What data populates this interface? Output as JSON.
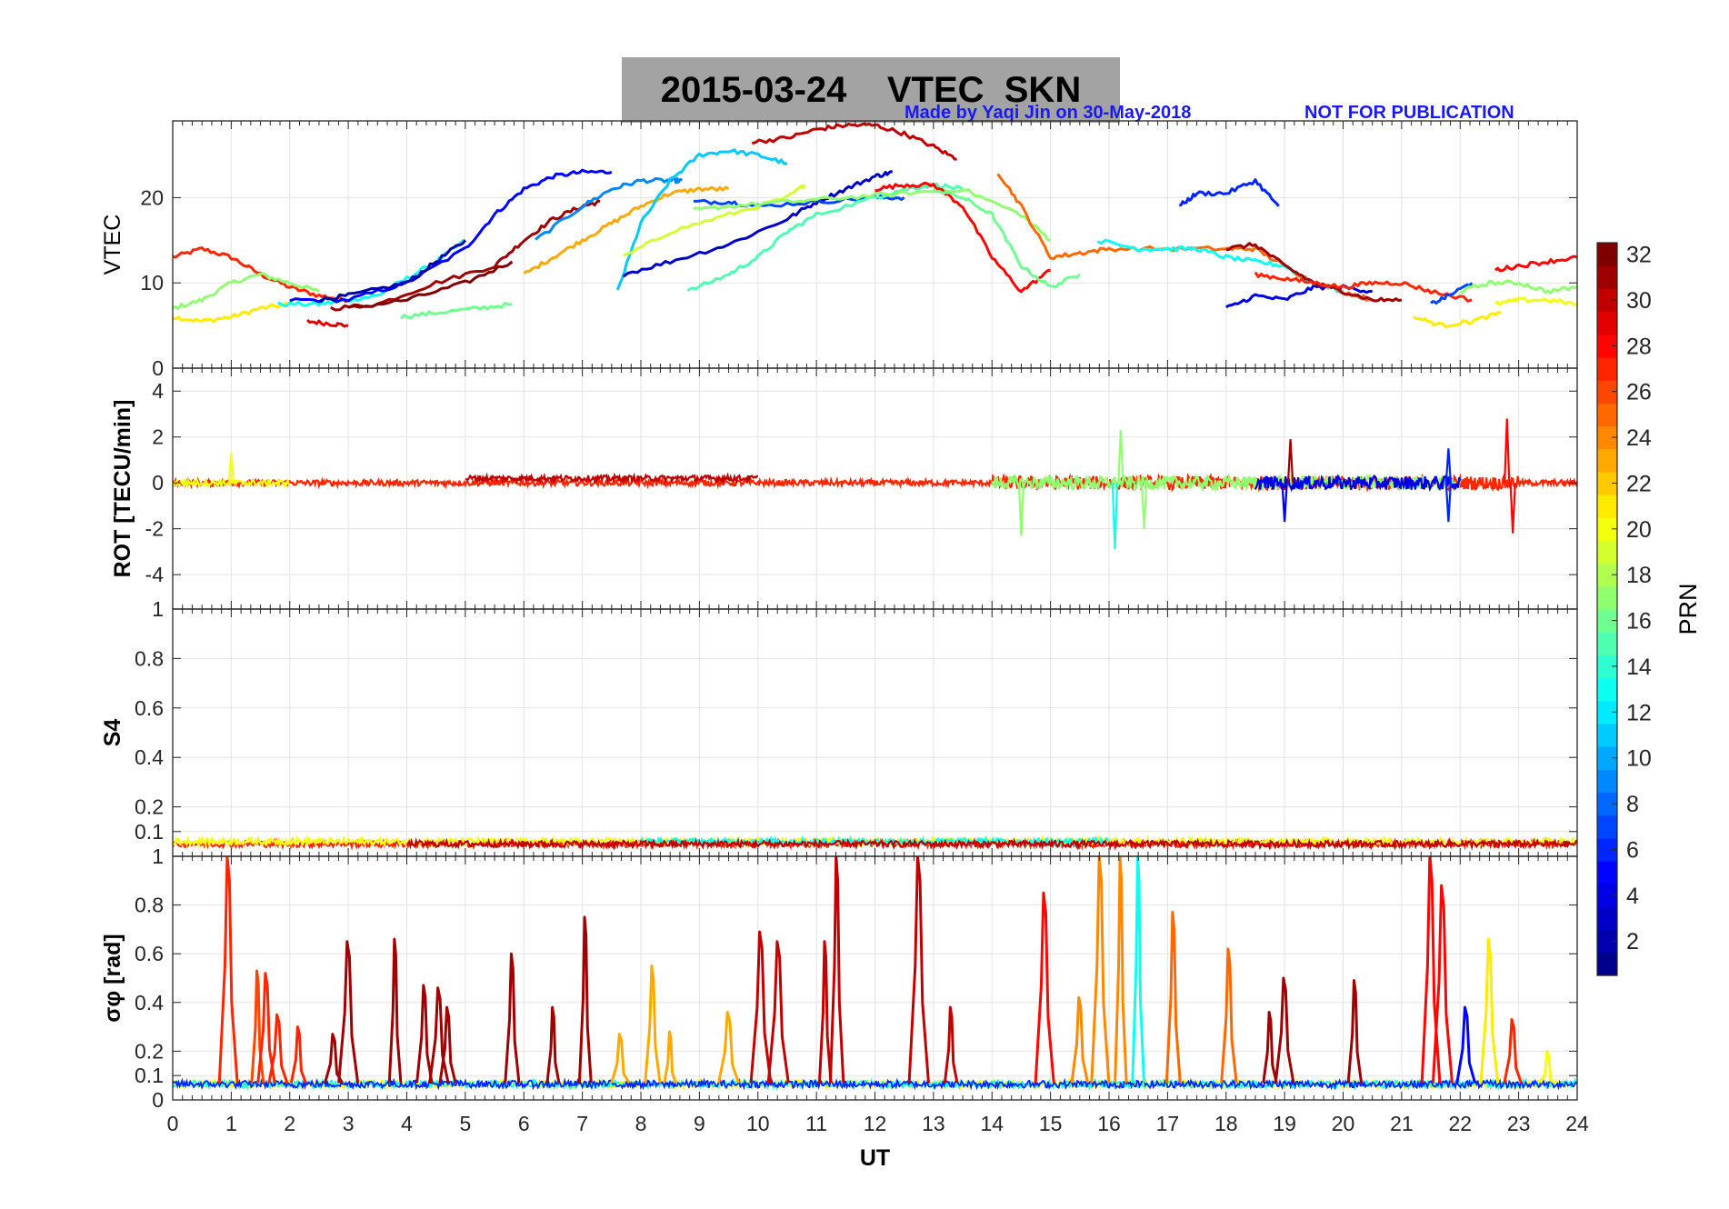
{
  "title": "2015-03-24    VTEC  SKN",
  "credit": "Made by Yaqi Jin on 30-May-2018",
  "watermark": "NOT FOR PUBLICATION",
  "chart_data": [
    {
      "type": "line",
      "panel": "vtec",
      "ylabel": "VTEC",
      "ylim": [
        0,
        29
      ],
      "yticks": [
        0,
        10,
        20
      ],
      "xlim": [
        0,
        24
      ],
      "grid": true,
      "description_series": "PRN-coloured arcs, approximate",
      "series": [
        {
          "name": "PRN 27",
          "prn": 27,
          "x": [
            0,
            0.5,
            1,
            1.5,
            2,
            2.5,
            3
          ],
          "y": [
            13,
            14,
            13,
            11,
            9.5,
            8.5,
            8
          ]
        },
        {
          "name": "PRN 21",
          "prn": 21,
          "x": [
            0,
            0.5,
            1,
            1.5,
            2
          ],
          "y": [
            6,
            5.5,
            6,
            7,
            7.5
          ]
        },
        {
          "name": "PRN 17",
          "prn": 17,
          "x": [
            0,
            0.5,
            1,
            1.5,
            2,
            2.5
          ],
          "y": [
            7,
            8,
            10,
            11,
            10,
            9
          ]
        },
        {
          "name": "PRN 29",
          "prn": 29,
          "x": [
            2.3,
            2.7,
            3.0
          ],
          "y": [
            5.5,
            5.2,
            5.0
          ]
        },
        {
          "name": "PRN 13",
          "prn": 13,
          "x": [
            1.8,
            2.5,
            3,
            3.5,
            4,
            4.5,
            5
          ],
          "y": [
            7.5,
            7.5,
            8,
            8.5,
            10.5,
            12.5,
            15
          ]
        },
        {
          "name": "PRN 5",
          "prn": 5,
          "x": [
            2,
            3,
            4,
            5,
            5.5,
            6,
            6.5,
            7,
            7.5
          ],
          "y": [
            8,
            8,
            10,
            14,
            18,
            21,
            22.5,
            23,
            23
          ]
        },
        {
          "name": "PRN 2",
          "prn": 2,
          "x": [
            2.5,
            3,
            4,
            4.5,
            5
          ],
          "y": [
            8,
            8.5,
            10,
            12.5,
            15
          ]
        },
        {
          "name": "PRN 31",
          "prn": 31,
          "x": [
            2.7,
            3.5,
            4.5,
            5.5,
            6,
            6.5,
            7,
            7.3
          ],
          "y": [
            7,
            7.5,
            10,
            12,
            15,
            17.5,
            19,
            19.5
          ]
        },
        {
          "name": "PRN 32",
          "prn": 32,
          "x": [
            3,
            4,
            5,
            5.8
          ],
          "y": [
            7,
            8,
            10,
            12.5
          ]
        },
        {
          "name": "PRN 16",
          "prn": 16,
          "x": [
            3.9,
            4.5,
            5.2,
            5.8
          ],
          "y": [
            6,
            6.5,
            7,
            7.5
          ]
        },
        {
          "name": "PRN 23",
          "prn": 23,
          "x": [
            6,
            6.5,
            7,
            7.5,
            8,
            8.5,
            9,
            9.5
          ],
          "y": [
            11,
            13,
            15,
            17,
            19,
            20.5,
            21,
            21
          ]
        },
        {
          "name": "PRN 9",
          "prn": 9,
          "x": [
            6.2,
            7,
            7.5,
            8,
            8.5,
            8.7
          ],
          "y": [
            15,
            19,
            21,
            22,
            22,
            22
          ]
        },
        {
          "name": "PRN 11",
          "prn": 11,
          "x": [
            7.6,
            8,
            8.5,
            9,
            9.5,
            10,
            10.5
          ],
          "y": [
            9,
            17,
            22,
            25,
            25.5,
            25,
            24
          ]
        },
        {
          "name": "PRN 19",
          "prn": 19,
          "x": [
            7.7,
            8.5,
            9.5,
            10.5,
            10.8
          ],
          "y": [
            13,
            16,
            18,
            20,
            21.5
          ]
        },
        {
          "name": "PRN 3",
          "prn": 3,
          "x": [
            7.7,
            8.5,
            9.5,
            10.5,
            11,
            11.5,
            12,
            12.3
          ],
          "y": [
            11,
            12.5,
            14.5,
            17.5,
            19.5,
            21,
            22.5,
            23
          ]
        },
        {
          "name": "PRN 7",
          "prn": 7,
          "x": [
            8.9,
            9.5,
            10,
            11,
            12,
            12.5
          ],
          "y": [
            19.5,
            19.5,
            19,
            19.5,
            20,
            20
          ]
        },
        {
          "name": "PRN 15",
          "prn": 15,
          "x": [
            8.8,
            9.5,
            10,
            10.5,
            11,
            12,
            12.5,
            13,
            13.5
          ],
          "y": [
            9,
            11,
            13,
            16,
            18,
            20,
            21,
            21.5,
            21
          ]
        },
        {
          "name": "PRN 17",
          "prn": 17,
          "x": [
            8.9,
            9.5,
            10.5,
            11.5,
            12.5,
            13.5,
            14.5,
            15
          ],
          "y": [
            18.5,
            19,
            19.5,
            20,
            20.5,
            21,
            18,
            15
          ]
        },
        {
          "name": "PRN 30",
          "prn": 30,
          "x": [
            9.9,
            10.5,
            11,
            11.5,
            12,
            12.5,
            13,
            13.4
          ],
          "y": [
            26.5,
            27,
            28,
            28.5,
            28.5,
            27.5,
            26,
            24.5
          ]
        },
        {
          "name": "PRN 28",
          "prn": 28,
          "x": [
            12,
            12.5,
            13,
            13.5,
            14,
            14.5,
            15
          ],
          "y": [
            21,
            21.5,
            21.5,
            19,
            13,
            9,
            11.5
          ]
        },
        {
          "name": "PRN 16",
          "prn": 16,
          "x": [
            13,
            13.5,
            14,
            14.5,
            15,
            15.5
          ],
          "y": [
            21,
            20,
            18,
            12,
            9.5,
            11
          ]
        },
        {
          "name": "PRN 25",
          "prn": 25,
          "x": [
            14.1,
            14.5,
            15,
            15.5,
            16,
            17,
            18,
            18.5,
            19,
            19.5,
            20,
            20.5
          ],
          "y": [
            23,
            19,
            13,
            13.5,
            14,
            14,
            14,
            14,
            12,
            10,
            9,
            8
          ]
        },
        {
          "name": "PRN 13",
          "prn": 13,
          "x": [
            15.8,
            16.5,
            17,
            17.5,
            18,
            18.5,
            19,
            19.5,
            20
          ],
          "y": [
            15,
            14,
            14,
            14,
            13,
            12.5,
            12,
            10,
            9
          ]
        },
        {
          "name": "PRN 6",
          "prn": 6,
          "x": [
            17.2,
            17.5,
            18,
            18.5,
            18.9
          ],
          "y": [
            19,
            20.5,
            20.5,
            22,
            19
          ]
        },
        {
          "name": "PRN 4",
          "prn": 4,
          "x": [
            18,
            18.5,
            19,
            19.5,
            20,
            20.5
          ],
          "y": [
            7,
            8.5,
            8,
            9.5,
            9.5,
            9
          ]
        },
        {
          "name": "PRN 31",
          "prn": 31,
          "x": [
            18,
            18.5,
            19,
            19.5,
            20,
            20.5,
            21
          ],
          "y": [
            14,
            14.5,
            12,
            10,
            9,
            8,
            8
          ]
        },
        {
          "name": "PRN 27",
          "prn": 27,
          "x": [
            18.5,
            19,
            19.5,
            20,
            20.5,
            21,
            21.5,
            22.2
          ],
          "y": [
            11,
            10.5,
            10,
            9.5,
            10,
            10,
            9,
            8
          ]
        },
        {
          "name": "PRN 21",
          "prn": 21,
          "x": [
            21.2,
            21.7,
            22.2,
            22.7
          ],
          "y": [
            6,
            5,
            5.5,
            6.5
          ]
        },
        {
          "name": "PRN 7",
          "prn": 7,
          "x": [
            21.5,
            21.8,
            22.2
          ],
          "y": [
            7.5,
            8.5,
            10
          ]
        },
        {
          "name": "PRN 17",
          "prn": 17,
          "x": [
            22,
            22.5,
            23,
            23.5,
            24
          ],
          "y": [
            9,
            10,
            10,
            9,
            9.5
          ]
        },
        {
          "name": "PRN 28",
          "prn": 28,
          "x": [
            22.6,
            23,
            23.5,
            24
          ],
          "y": [
            11.5,
            12,
            12.5,
            13
          ]
        },
        {
          "name": "PRN 20",
          "prn": 20,
          "x": [
            22.6,
            23,
            23.5,
            24
          ],
          "y": [
            7.5,
            8,
            8,
            7.5
          ]
        }
      ]
    },
    {
      "type": "line",
      "panel": "rot",
      "ylabel": "ROT [TECU/min]",
      "ylim": [
        -5.5,
        5
      ],
      "yticks": [
        -4,
        -2,
        0,
        2,
        4
      ],
      "xlim": [
        0,
        24
      ],
      "grid": true,
      "description_series": "noise around 0 with spikes; approximate",
      "series": [
        {
          "name": "PRN 27",
          "prn": 27,
          "x": [
            0,
            24
          ],
          "y": [
            0,
            0
          ]
        },
        {
          "name": "PRN 20",
          "prn": 20,
          "x": [
            0,
            2
          ],
          "y": [
            0,
            0
          ]
        },
        {
          "name": "PRN 17",
          "prn": 17,
          "x": [
            14,
            16.5,
            22
          ],
          "y": [
            0,
            0,
            0
          ]
        },
        {
          "name": "PRN 30",
          "prn": 30,
          "x": [
            5,
            10
          ],
          "y": [
            0.2,
            0
          ]
        },
        {
          "name": "PRN 4",
          "prn": 4,
          "x": [
            18.5,
            22
          ],
          "y": [
            0,
            0
          ]
        }
      ],
      "spikes": [
        {
          "x": 1.0,
          "y": 1.3,
          "prn": 20
        },
        {
          "x": 14.5,
          "y": -2.3,
          "prn": 17
        },
        {
          "x": 16.1,
          "y": -2.9,
          "prn": 13
        },
        {
          "x": 16.2,
          "y": 2.3,
          "prn": 17
        },
        {
          "x": 16.6,
          "y": -2.0,
          "prn": 17
        },
        {
          "x": 19.0,
          "y": -1.7,
          "prn": 4
        },
        {
          "x": 19.1,
          "y": 1.9,
          "prn": 31
        },
        {
          "x": 21.8,
          "y": 1.5,
          "prn": 6
        },
        {
          "x": 21.8,
          "y": -1.7,
          "prn": 6
        },
        {
          "x": 22.8,
          "y": 2.8,
          "prn": 28
        },
        {
          "x": 22.9,
          "y": -2.2,
          "prn": 28
        }
      ]
    },
    {
      "type": "line",
      "panel": "s4",
      "ylabel": "S4",
      "ylim": [
        0,
        1
      ],
      "yticks": [
        0.1,
        0.2,
        0.4,
        0.6,
        0.8,
        1
      ],
      "xlim": [
        0,
        24
      ],
      "grid": true,
      "description_series": "near-constant 0.03-0.07; approximate",
      "series": [
        {
          "name": "PRN 27",
          "prn": 27,
          "x": [
            0,
            24
          ],
          "y": [
            0.05,
            0.05
          ]
        },
        {
          "name": "PRN 20",
          "prn": 20,
          "x": [
            0,
            24
          ],
          "y": [
            0.06,
            0.06
          ]
        },
        {
          "name": "PRN 13",
          "prn": 13,
          "x": [
            8,
            16
          ],
          "y": [
            0.06,
            0.06
          ]
        },
        {
          "name": "PRN 30",
          "prn": 30,
          "x": [
            4,
            24
          ],
          "y": [
            0.05,
            0.05
          ]
        }
      ]
    },
    {
      "type": "line",
      "panel": "sigma_phi",
      "ylabel": "σφ [rad]",
      "ylim": [
        0,
        1
      ],
      "yticks": [
        0,
        0.1,
        0.2,
        0.4,
        0.6,
        0.8,
        1
      ],
      "xlim": [
        0,
        24
      ],
      "xticks": [
        0,
        1,
        2,
        3,
        4,
        5,
        6,
        7,
        8,
        9,
        10,
        11,
        12,
        13,
        14,
        15,
        16,
        17,
        18,
        19,
        20,
        21,
        22,
        23,
        24
      ],
      "xlabel": "UT",
      "grid": true,
      "description_series": "baseline ~0.07 with spikes; approximate peaks",
      "peaks": [
        {
          "x": 0.95,
          "y": 1.0,
          "prn": 27
        },
        {
          "x": 1.45,
          "y": 0.53,
          "prn": 26
        },
        {
          "x": 1.6,
          "y": 0.52,
          "prn": 27
        },
        {
          "x": 1.8,
          "y": 0.35,
          "prn": 27
        },
        {
          "x": 2.15,
          "y": 0.3,
          "prn": 27
        },
        {
          "x": 2.75,
          "y": 0.27,
          "prn": 31
        },
        {
          "x": 3.0,
          "y": 0.65,
          "prn": 31
        },
        {
          "x": 3.8,
          "y": 0.66,
          "prn": 31
        },
        {
          "x": 4.3,
          "y": 0.47,
          "prn": 31
        },
        {
          "x": 4.55,
          "y": 0.46,
          "prn": 31
        },
        {
          "x": 4.7,
          "y": 0.38,
          "prn": 31
        },
        {
          "x": 5.8,
          "y": 0.6,
          "prn": 31
        },
        {
          "x": 6.5,
          "y": 0.38,
          "prn": 31
        },
        {
          "x": 7.05,
          "y": 0.75,
          "prn": 31
        },
        {
          "x": 7.65,
          "y": 0.27,
          "prn": 23
        },
        {
          "x": 8.2,
          "y": 0.55,
          "prn": 23
        },
        {
          "x": 8.5,
          "y": 0.28,
          "prn": 23
        },
        {
          "x": 9.5,
          "y": 0.36,
          "prn": 23
        },
        {
          "x": 10.05,
          "y": 0.69,
          "prn": 30
        },
        {
          "x": 10.35,
          "y": 0.65,
          "prn": 30
        },
        {
          "x": 11.15,
          "y": 0.65,
          "prn": 30
        },
        {
          "x": 11.35,
          "y": 1.0,
          "prn": 30
        },
        {
          "x": 12.75,
          "y": 1.0,
          "prn": 30
        },
        {
          "x": 13.3,
          "y": 0.38,
          "prn": 30
        },
        {
          "x": 14.9,
          "y": 0.85,
          "prn": 28
        },
        {
          "x": 15.5,
          "y": 0.42,
          "prn": 24
        },
        {
          "x": 15.85,
          "y": 1.0,
          "prn": 24
        },
        {
          "x": 16.2,
          "y": 1.0,
          "prn": 24
        },
        {
          "x": 16.5,
          "y": 1.0,
          "prn": 13
        },
        {
          "x": 17.1,
          "y": 0.77,
          "prn": 25
        },
        {
          "x": 18.05,
          "y": 0.62,
          "prn": 25
        },
        {
          "x": 18.75,
          "y": 0.36,
          "prn": 31
        },
        {
          "x": 19.0,
          "y": 0.5,
          "prn": 31
        },
        {
          "x": 20.2,
          "y": 0.49,
          "prn": 31
        },
        {
          "x": 21.5,
          "y": 1.0,
          "prn": 28
        },
        {
          "x": 21.7,
          "y": 0.88,
          "prn": 28
        },
        {
          "x": 22.1,
          "y": 0.38,
          "prn": 5
        },
        {
          "x": 22.5,
          "y": 0.66,
          "prn": 21
        },
        {
          "x": 22.9,
          "y": 0.33,
          "prn": 27
        },
        {
          "x": 23.5,
          "y": 0.2,
          "prn": 20
        }
      ]
    },
    {
      "type": "heatmap",
      "panel": "colorbar",
      "label": "PRN",
      "range": [
        1,
        32
      ],
      "ticks": [
        2,
        4,
        6,
        8,
        10,
        12,
        14,
        16,
        18,
        20,
        22,
        24,
        26,
        28,
        30,
        32
      ],
      "colors": [
        "#00008f",
        "#0000ff",
        "#0080ff",
        "#00ffff",
        "#80ff80",
        "#ffff00",
        "#ff8000",
        "#ff0000",
        "#800000"
      ]
    }
  ]
}
